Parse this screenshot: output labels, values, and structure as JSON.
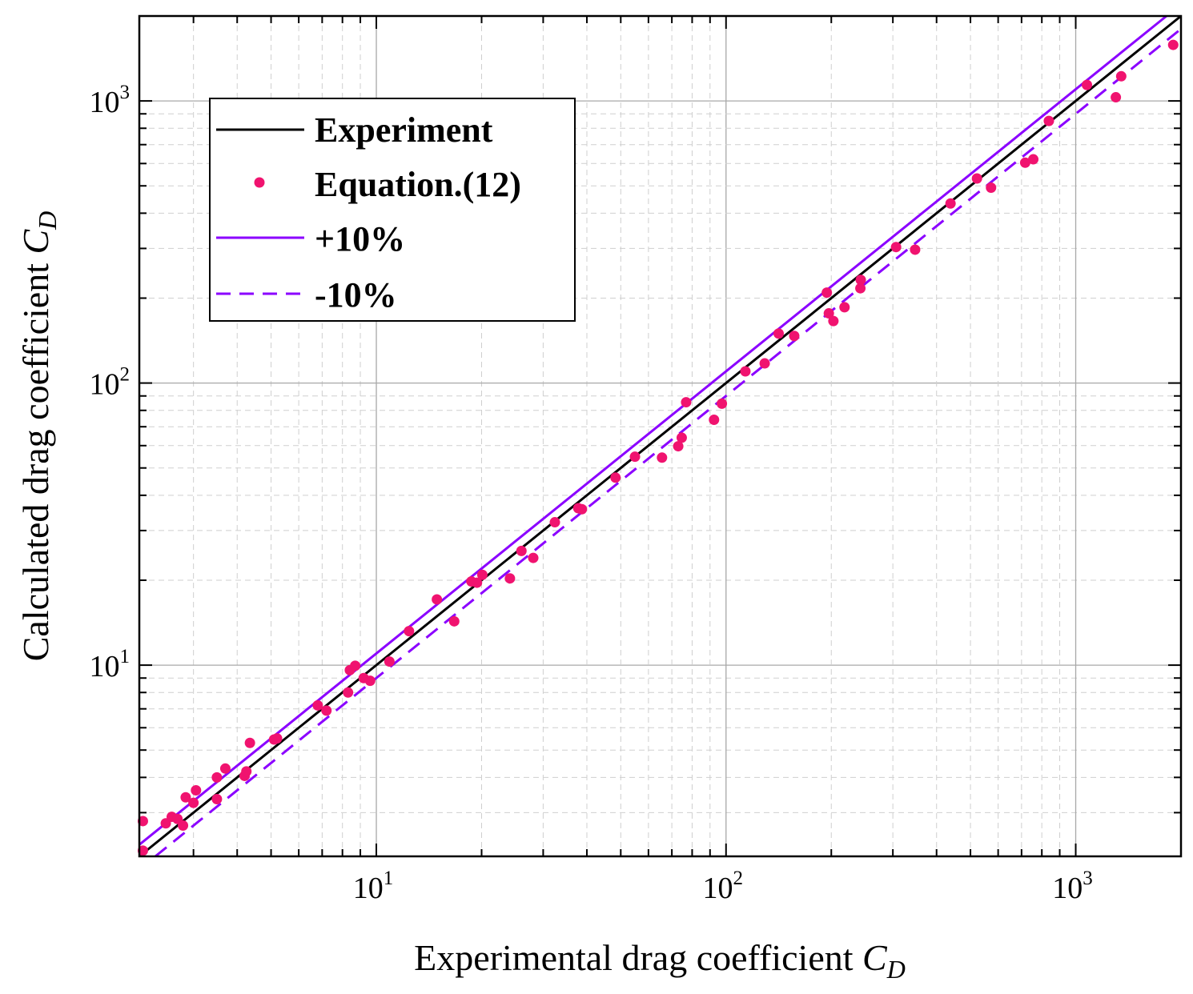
{
  "chart_data": {
    "type": "scatter",
    "title": "",
    "xlabel": "Experimental drag coefficient",
    "xlabel_symbol": "C",
    "xlabel_subscript": "D",
    "ylabel": "Calculated drag coefficient",
    "ylabel_symbol": "C",
    "ylabel_subscript": "D",
    "xscale": "log",
    "yscale": "log",
    "xlim": [
      2.1,
      2000
    ],
    "ylim": [
      2.1,
      2000
    ],
    "grid": true,
    "x_ticks": [
      {
        "base": "10",
        "exp": "1",
        "value": 10
      },
      {
        "base": "10",
        "exp": "2",
        "value": 100
      },
      {
        "base": "10",
        "exp": "3",
        "value": 1000
      }
    ],
    "y_ticks": [
      {
        "base": "10",
        "exp": "1",
        "value": 10
      },
      {
        "base": "10",
        "exp": "2",
        "value": 100
      },
      {
        "base": "10",
        "exp": "3",
        "value": 1000
      }
    ],
    "legend_position": "top-left",
    "legend": [
      {
        "label": "Experiment",
        "style": "solid-line",
        "color": "#000000"
      },
      {
        "label": "Equation.(12)",
        "style": "dot",
        "color": "#f0136f"
      },
      {
        "label": "+10%",
        "style": "solid-line",
        "color": "#8b00ff"
      },
      {
        "label": "-10%",
        "style": "dashed-line",
        "color": "#8b00ff"
      }
    ],
    "lines": [
      {
        "name": "Experiment",
        "factor": 1.0,
        "dashed": false,
        "color": "#000000"
      },
      {
        "name": "+10%",
        "factor": 1.1,
        "dashed": false,
        "color": "#8b00ff"
      },
      {
        "name": "-10%",
        "factor": 0.9,
        "dashed": true,
        "color": "#8b00ff"
      }
    ],
    "series": [
      {
        "name": "Equation.(12)",
        "color": "#f0136f",
        "points": [
          [
            2.15,
            2.8
          ],
          [
            2.15,
            2.2
          ],
          [
            2.5,
            2.75
          ],
          [
            2.6,
            2.9
          ],
          [
            2.7,
            2.85
          ],
          [
            2.8,
            2.7
          ],
          [
            2.85,
            3.4
          ],
          [
            3.0,
            3.25
          ],
          [
            3.05,
            3.6
          ],
          [
            3.5,
            4.0
          ],
          [
            3.5,
            3.35
          ],
          [
            3.7,
            4.3
          ],
          [
            4.2,
            4.05
          ],
          [
            4.25,
            4.2
          ],
          [
            4.35,
            5.3
          ],
          [
            5.1,
            5.45
          ],
          [
            5.2,
            5.5
          ],
          [
            6.8,
            7.2
          ],
          [
            7.2,
            6.9
          ],
          [
            8.3,
            8.0
          ],
          [
            8.4,
            9.6
          ],
          [
            8.7,
            9.95
          ],
          [
            9.2,
            9.0
          ],
          [
            9.6,
            8.8
          ],
          [
            10.9,
            10.3
          ],
          [
            12.4,
            13.2
          ],
          [
            14.9,
            17.1
          ],
          [
            16.7,
            14.3
          ],
          [
            18.7,
            19.8
          ],
          [
            19.4,
            19.6
          ],
          [
            20.1,
            20.9
          ],
          [
            24.1,
            20.3
          ],
          [
            26.0,
            25.4
          ],
          [
            28.1,
            24.0
          ],
          [
            32.4,
            32.1
          ],
          [
            37.8,
            36.0
          ],
          [
            38.7,
            35.7
          ],
          [
            48.3,
            46.2
          ],
          [
            54.9,
            54.8
          ],
          [
            65.6,
            54.4
          ],
          [
            73.0,
            59.7
          ],
          [
            74.7,
            64.0
          ],
          [
            76.9,
            85.5
          ],
          [
            92.4,
            74.1
          ],
          [
            97.3,
            84.5
          ],
          [
            113.6,
            110.0
          ],
          [
            129.0,
            117.4
          ],
          [
            141.4,
            149.8
          ],
          [
            156.7,
            146.9
          ],
          [
            194.2,
            209.2
          ],
          [
            196.8,
            176.6
          ],
          [
            202.8,
            165.9
          ],
          [
            218.2,
            185.7
          ],
          [
            242.8,
            232.0
          ],
          [
            242.2,
            216.7
          ],
          [
            306.4,
            303.4
          ],
          [
            347.3,
            297.0
          ],
          [
            438.5,
            433.0
          ],
          [
            521.9,
            531.0
          ],
          [
            572.6,
            492.5
          ],
          [
            717.0,
            604.0
          ],
          [
            756.2,
            621.0
          ],
          [
            837.8,
            849.2
          ],
          [
            1076.5,
            1139.4
          ],
          [
            1302.3,
            1030.2
          ],
          [
            1349.3,
            1223.0
          ],
          [
            1900.0,
            1580.0
          ]
        ]
      }
    ]
  }
}
